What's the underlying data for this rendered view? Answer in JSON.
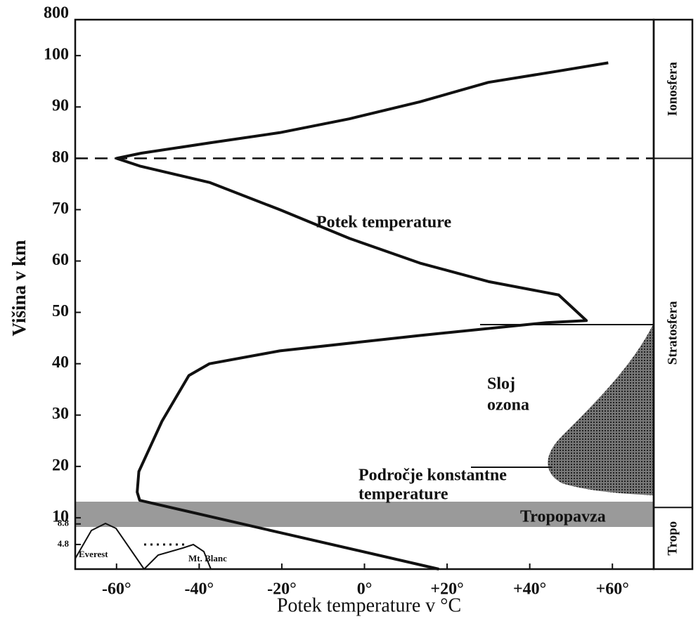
{
  "chart_data": {
    "type": "line",
    "x_label": "Potek temperature v °C",
    "y_label": "Višina v km",
    "break_label": "800",
    "x": [
      18,
      -54.4,
      -55,
      -54.6,
      -49,
      -42.5,
      -37.5,
      -20.5,
      13.4,
      44,
      53.7,
      47,
      30,
      13.4,
      -3.6,
      -20.5,
      -37.5,
      -54.4,
      -60,
      -54,
      -37.5,
      -20.5,
      -3.6,
      13.4,
      30,
      47,
      59
    ],
    "series": [
      {
        "name": "Potek temperature",
        "color": "#111111",
        "values": [
          0,
          13.4,
          15,
          19,
          28.8,
          37.7,
          40,
          42.5,
          45.5,
          48,
          48.4,
          53.4,
          56,
          59.6,
          64.4,
          70,
          75.3,
          78.5,
          80,
          81,
          83,
          85,
          87.7,
          91,
          94.8,
          97,
          98.6
        ]
      }
    ],
    "xlim": [
      -70,
      70
    ],
    "ylim": [
      0,
      107
    ],
    "xticks": [
      {
        "value": -60,
        "label": "-60°"
      },
      {
        "value": -40,
        "label": "-40°"
      },
      {
        "value": -20,
        "label": "-20°"
      },
      {
        "value": 0,
        "label": "0°"
      },
      {
        "value": 20,
        "label": "+20°"
      },
      {
        "value": 40,
        "label": "+40°"
      },
      {
        "value": 60,
        "label": "+60°"
      }
    ],
    "yticks": [
      4.8,
      8.8,
      10,
      20,
      30,
      40,
      50,
      60,
      70,
      80,
      90,
      100
    ],
    "dashed_line": 80,
    "layer_bounds": [
      12,
      80
    ],
    "layers": [
      "Tropo",
      "Stratosfera",
      "Ionosfera"
    ],
    "annotations": {
      "curve": "Potek temperature",
      "ozone_1": "Sloj",
      "ozone_2": "ozona",
      "constant_1": "Področje konstantne",
      "constant_2": "temperature",
      "tropopause": "Tropopavza",
      "everest": "Everest",
      "mont_blanc": "Mt. Blanc"
    }
  }
}
